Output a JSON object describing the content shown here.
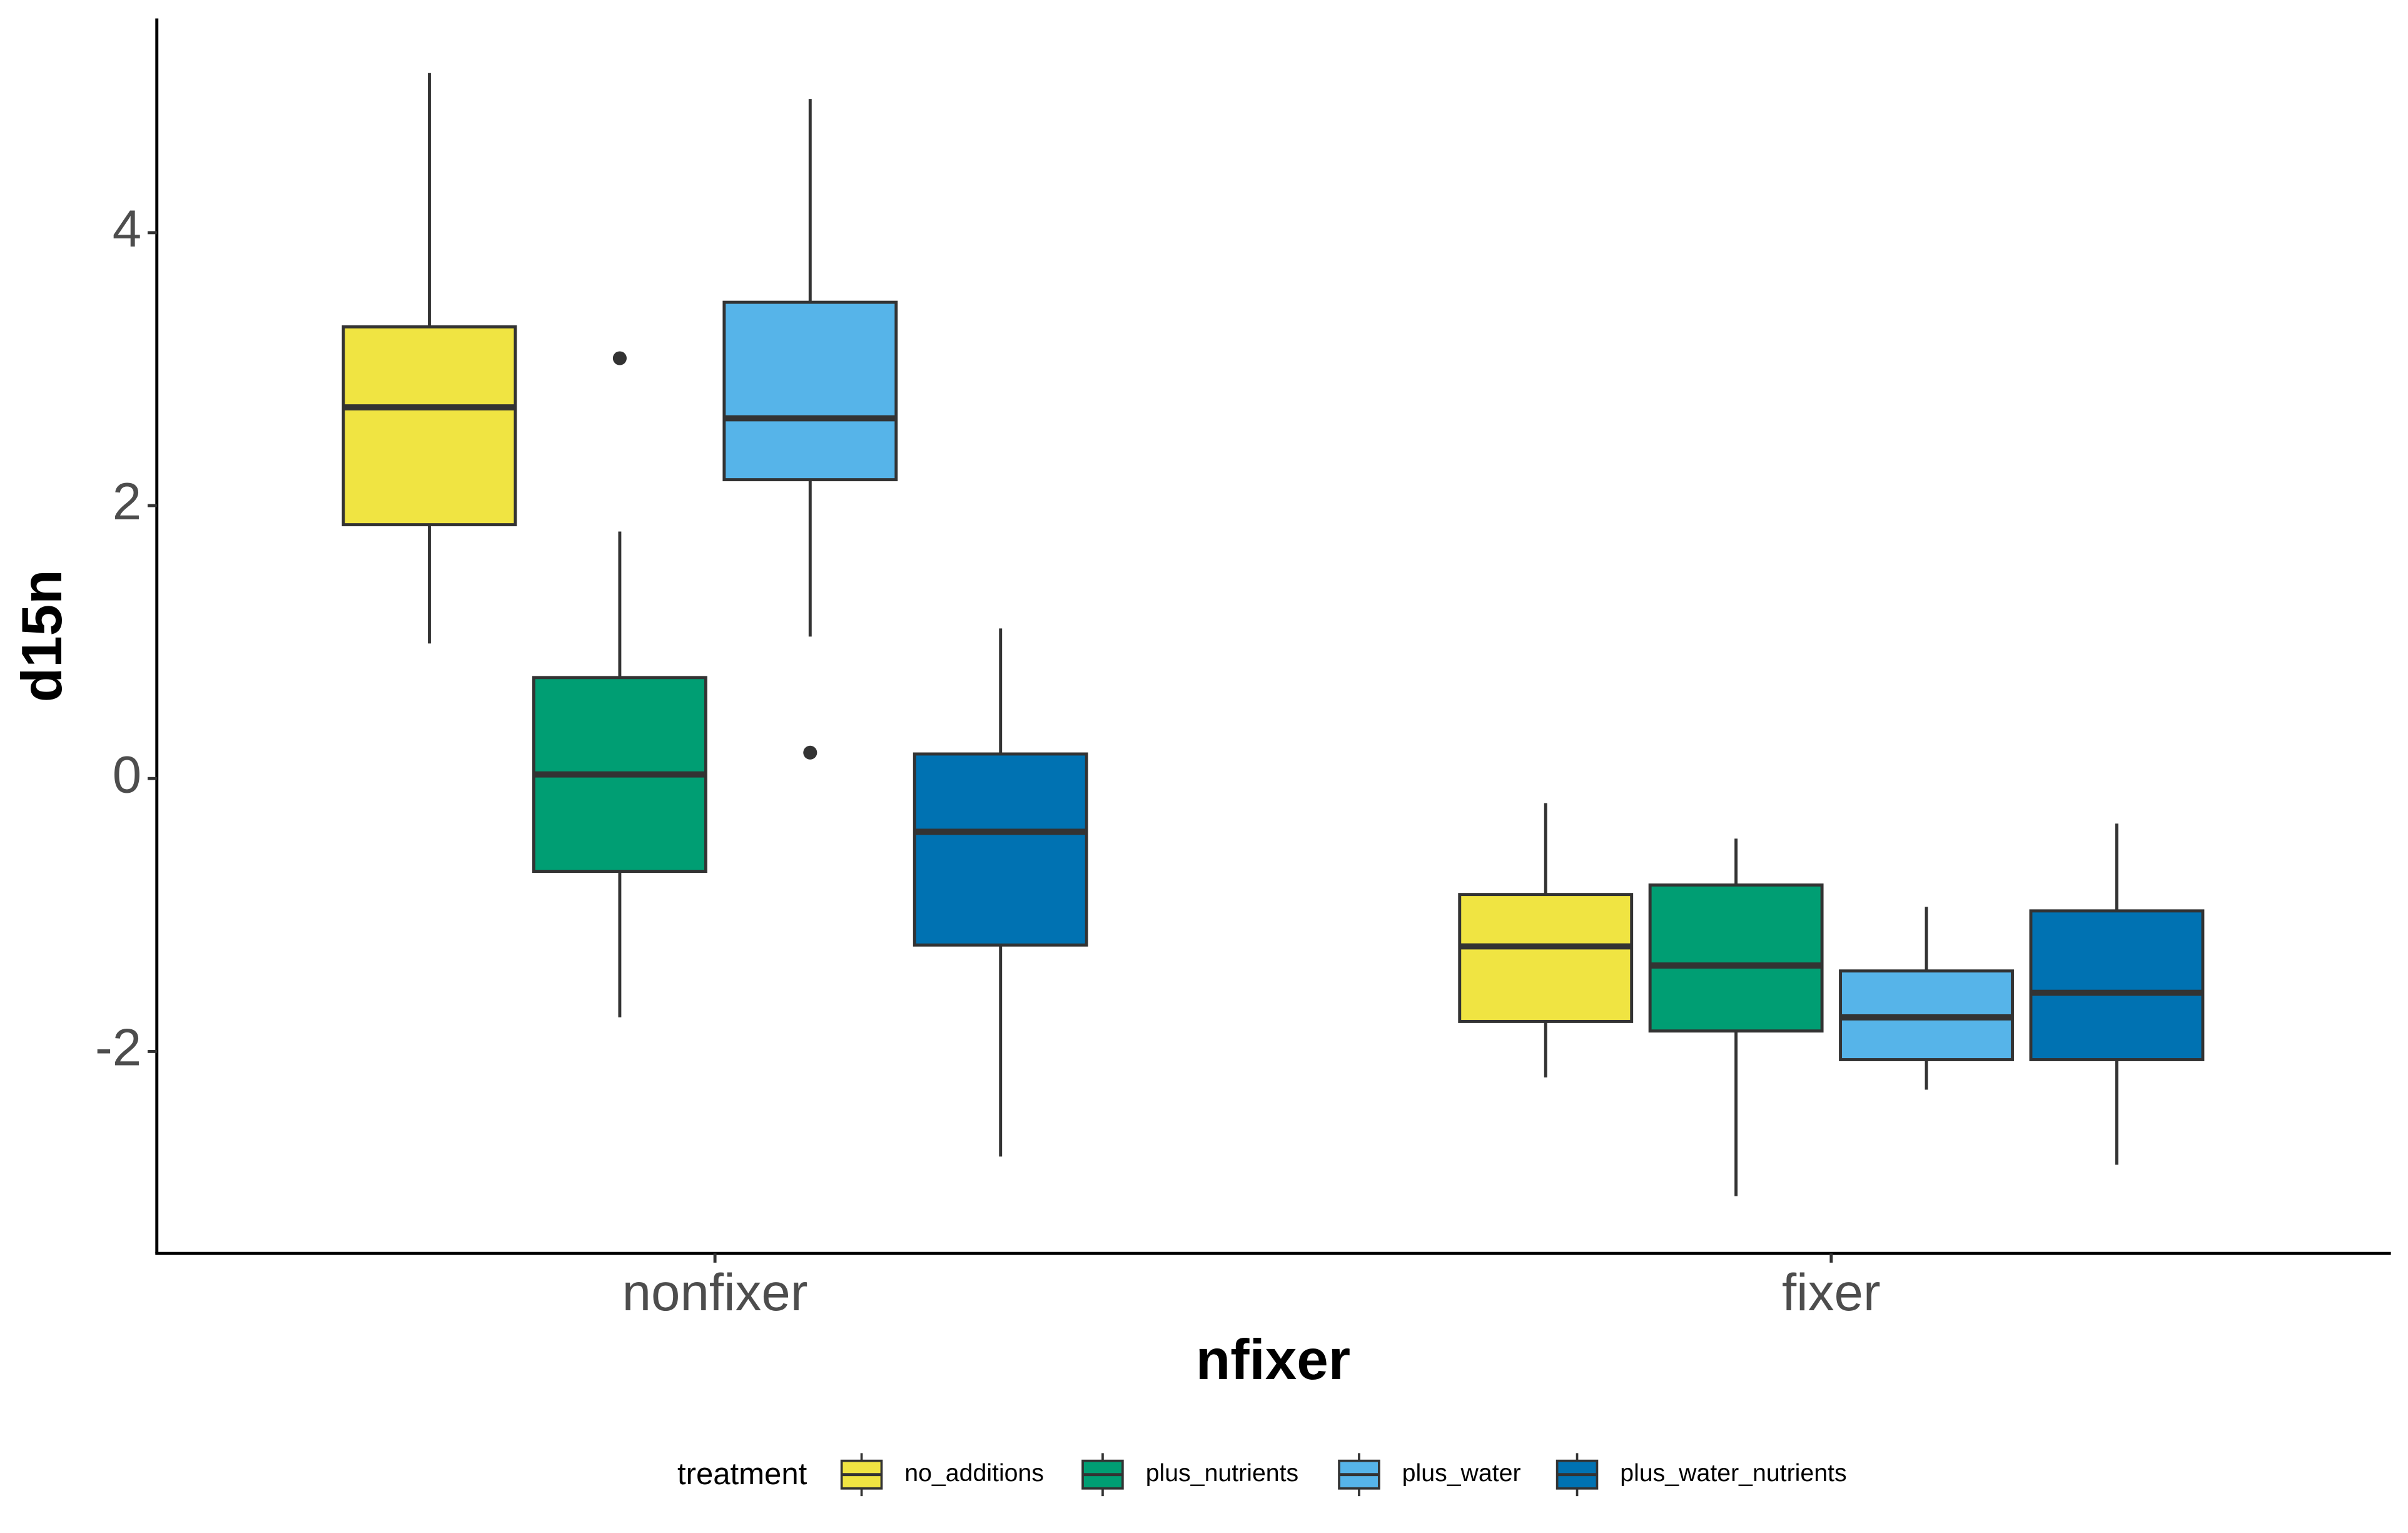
{
  "chart_data": {
    "type": "boxplot",
    "x_label": "nfixer",
    "y_label": "d15n",
    "legend_title": "treatment",
    "categories": [
      "nonfixer",
      "fixer"
    ],
    "ylim": [
      -3.48,
      5.57
    ],
    "yticks": [
      -2,
      0,
      2,
      4
    ],
    "grid": false,
    "legend_position": "bottom",
    "series": [
      {
        "name": "no_additions",
        "color": "#F0E442",
        "values": [
          {
            "low": 0.99,
            "q1": 1.86,
            "median": 2.72,
            "q3": 3.31,
            "high": 5.17
          },
          {
            "low": -2.19,
            "q1": -1.78,
            "median": -1.23,
            "q3": -0.85,
            "high": -0.18
          }
        ]
      },
      {
        "name": "plus_nutrients",
        "color": "#009E73",
        "values": [
          {
            "low": -1.75,
            "q1": -0.68,
            "median": 0.03,
            "q3": 0.74,
            "high": 1.81,
            "outliers": [
              3.08
            ]
          },
          {
            "low": -3.06,
            "q1": -1.85,
            "median": -1.37,
            "q3": -0.78,
            "high": -0.44
          }
        ]
      },
      {
        "name": "plus_water",
        "color": "#56B4E9",
        "values": [
          {
            "low": 1.04,
            "q1": 2.19,
            "median": 2.64,
            "q3": 3.49,
            "high": 4.98,
            "outliers": [
              0.19
            ]
          },
          {
            "low": -2.28,
            "q1": -2.06,
            "median": -1.75,
            "q3": -1.41,
            "high": -0.94
          }
        ]
      },
      {
        "name": "plus_water_nutrients",
        "color": "#0072B2",
        "values": [
          {
            "low": -2.77,
            "q1": -1.22,
            "median": -0.39,
            "q3": 0.18,
            "high": 1.1
          },
          {
            "low": -2.83,
            "q1": -2.06,
            "median": -1.57,
            "q3": -0.97,
            "high": -0.33
          }
        ]
      }
    ]
  }
}
